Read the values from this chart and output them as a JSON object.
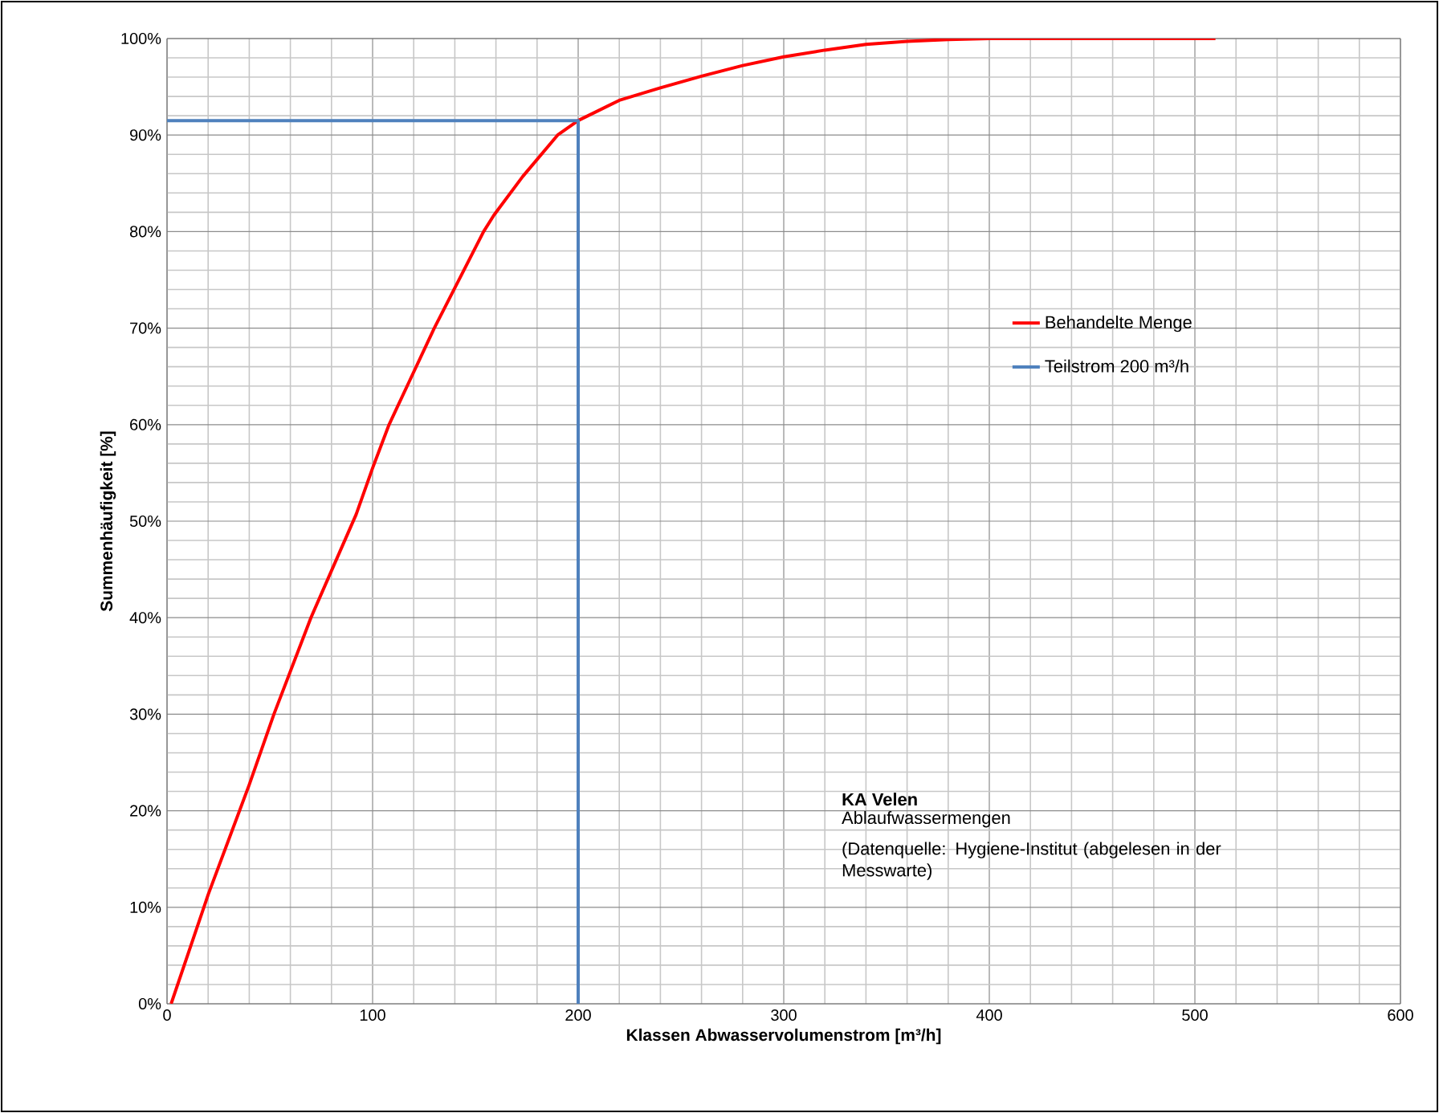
{
  "chart_data": {
    "type": "line",
    "xlabel": "Klassen  Abwasservolumenstrom  [m³/h]",
    "ylabel": "Summenhäufigkeit [%]",
    "xlim": [
      0,
      600
    ],
    "xticks": [
      0,
      100,
      200,
      300,
      400,
      500,
      600
    ],
    "ylim": [
      0,
      100
    ],
    "yticks": [
      {
        "value": 0,
        "label": "0%"
      },
      {
        "value": 10,
        "label": "10%"
      },
      {
        "value": 20,
        "label": "20%"
      },
      {
        "value": 30,
        "label": "30%"
      },
      {
        "value": 40,
        "label": "40%"
      },
      {
        "value": 50,
        "label": "50%"
      },
      {
        "value": 60,
        "label": "60%"
      },
      {
        "value": 70,
        "label": "70%"
      },
      {
        "value": 80,
        "label": "80%"
      },
      {
        "value": 90,
        "label": "90%"
      },
      {
        "value": 100,
        "label": "100%"
      }
    ],
    "grid": true,
    "legend": "right",
    "marker": "none",
    "line_style": "solid",
    "series": [
      {
        "name": "Behandelte Menge",
        "color": "#ff0000",
        "x": [
          2,
          20,
          40,
          52,
          70,
          92,
          100,
          108,
          130,
          154,
          159,
          173,
          190,
          200,
          220,
          240,
          260,
          280,
          300,
          320,
          340,
          360,
          380,
          400,
          510
        ],
        "values": [
          0,
          11.3,
          22.7,
          30,
          40,
          50.7,
          55.5,
          60,
          70,
          80,
          81.7,
          85.7,
          90,
          91.5,
          93.6,
          94.9,
          96.1,
          97.2,
          98.1,
          98.8,
          99.4,
          99.7,
          99.9,
          100,
          100
        ]
      },
      {
        "name": "Teilstrom 200 m³/h",
        "color": "#4f81bd",
        "x": [
          0,
          200,
          200
        ],
        "values": [
          91.5,
          91.5,
          0
        ]
      }
    ],
    "annotations": [
      "KA Velen",
      "Ablaufwassermengen",
      "(Datenquelle: Hygiene-Institut  (abgelesen in der Messwarte)"
    ]
  }
}
